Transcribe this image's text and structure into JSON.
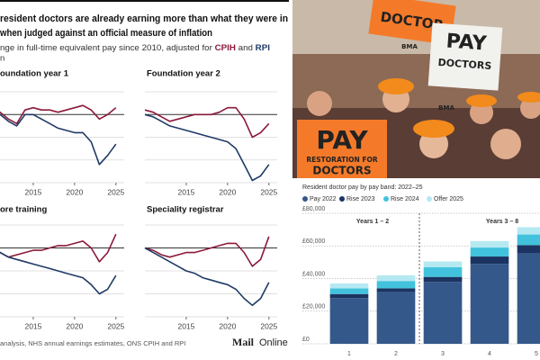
{
  "header": {
    "title": [
      "resident doctors are already earning more than what they were in",
      "when judged against an official measure of inflation"
    ],
    "subtitle": [
      "nge in full-time equivalent pay since 2010, adjusted for ",
      "CPIH",
      " and ",
      "RPI",
      "n"
    ],
    "source": "analysis, NHS annual earnings estimates, ONS CPIH and RPI",
    "logo": [
      "Mail",
      "Online"
    ]
  },
  "photo": {
    "signs": [
      "PAY",
      "RESTORATION FOR",
      "DOCTORS",
      "DOCTOR",
      "PAY",
      "DOCTORS",
      "BMA",
      "BMA"
    ]
  },
  "chart_data": [
    {
      "type": "line",
      "title": "oundation year 1",
      "x": [
        2010,
        2011,
        2012,
        2013,
        2014,
        2015,
        2016,
        2017,
        2018,
        2019,
        2020,
        2021,
        2022,
        2023,
        2024,
        2025
      ],
      "series": [
        {
          "color": "#8b1a3a",
          "values": [
            0,
            1,
            -2,
            -4,
            2,
            3,
            2,
            2,
            1,
            2,
            3,
            4,
            2,
            -2,
            0,
            3
          ]
        },
        {
          "color": "#1f3a66",
          "values": [
            0,
            0,
            -3,
            -5,
            0,
            0,
            -2,
            -4,
            -6,
            -7,
            -8,
            -8,
            -12,
            -22,
            -18,
            -13
          ]
        }
      ],
      "xlim": [
        2010,
        2026
      ],
      "xticks": [
        2015,
        2020,
        2025
      ],
      "ylim": [
        -30,
        10
      ],
      "yticks": [
        -30,
        -20,
        -10,
        0,
        10
      ],
      "grid": true
    },
    {
      "type": "line",
      "title": "Foundation year 2",
      "x": [
        2010,
        2011,
        2012,
        2013,
        2014,
        2015,
        2016,
        2017,
        2018,
        2019,
        2020,
        2021,
        2022,
        2023,
        2024,
        2025
      ],
      "series": [
        {
          "color": "#8b1a3a",
          "values": [
            2,
            1,
            -1,
            -3,
            -2,
            -1,
            0,
            0,
            0,
            1,
            3,
            3,
            -2,
            -10,
            -8,
            -4
          ]
        },
        {
          "color": "#1f3a66",
          "values": [
            0,
            -1,
            -3,
            -5,
            -6,
            -7,
            -8,
            -9,
            -10,
            -11,
            -12,
            -15,
            -22,
            -29,
            -27,
            -22
          ]
        }
      ],
      "xlim": [
        2010,
        2026
      ],
      "xticks": [
        2015,
        2020,
        2025
      ],
      "ylim": [
        -30,
        10
      ],
      "yticks": [
        -30,
        -20,
        -10,
        0,
        10
      ],
      "grid": true
    },
    {
      "type": "line",
      "title": "ore training",
      "x": [
        2010,
        2011,
        2012,
        2013,
        2014,
        2015,
        2016,
        2017,
        2018,
        2019,
        2020,
        2021,
        2022,
        2023,
        2024,
        2025
      ],
      "series": [
        {
          "color": "#8b1a3a",
          "values": [
            0,
            -2,
            -4,
            -3,
            -2,
            -1,
            -1,
            0,
            1,
            1,
            2,
            3,
            0,
            -6,
            -2,
            6
          ]
        },
        {
          "color": "#1f3a66",
          "values": [
            0,
            -2,
            -4,
            -5,
            -6,
            -7,
            -8,
            -9,
            -10,
            -11,
            -12,
            -13,
            -16,
            -20,
            -18,
            -12
          ]
        }
      ],
      "xlim": [
        2010,
        2026
      ],
      "xticks": [
        2015,
        2020,
        2025
      ],
      "ylim": [
        -30,
        10
      ],
      "yticks": [
        -30,
        -20,
        -10,
        0,
        10
      ],
      "grid": true
    },
    {
      "type": "line",
      "title": "Speciality registrar",
      "x": [
        2010,
        2011,
        2012,
        2013,
        2014,
        2015,
        2016,
        2017,
        2018,
        2019,
        2020,
        2021,
        2022,
        2023,
        2024,
        2025
      ],
      "series": [
        {
          "color": "#8b1a3a",
          "values": [
            0,
            -1,
            -3,
            -4,
            -3,
            -2,
            -2,
            -1,
            0,
            1,
            2,
            2,
            -2,
            -8,
            -5,
            5
          ]
        },
        {
          "color": "#1f3a66",
          "values": [
            0,
            -2,
            -4,
            -6,
            -8,
            -10,
            -11,
            -13,
            -14,
            -15,
            -16,
            -18,
            -22,
            -25,
            -22,
            -15
          ]
        }
      ],
      "xlim": [
        2010,
        2026
      ],
      "xticks": [
        2015,
        2020,
        2025
      ],
      "ylim": [
        -30,
        10
      ],
      "yticks": [
        -30,
        -20,
        -10,
        0,
        10
      ],
      "grid": true
    },
    {
      "type": "bar",
      "stacked": true,
      "title": "Resident doctor pay by pay band: 2022–25",
      "categories": [
        "1",
        "2",
        "3",
        "4",
        "5"
      ],
      "series": [
        {
          "name": "Pay 2022",
          "color": "#34588a",
          "values": [
            28000,
            32000,
            38000,
            49000,
            55500
          ]
        },
        {
          "name": "Rise 2023",
          "color": "#1c3461",
          "values": [
            2500,
            2000,
            3000,
            4500,
            5000
          ]
        },
        {
          "name": "Rise 2024",
          "color": "#42c2dc",
          "values": [
            3500,
            4500,
            6000,
            5500,
            6500
          ]
        },
        {
          "name": "Offer 2025",
          "color": "#b5e9f2",
          "values": [
            3000,
            3500,
            3500,
            4000,
            4500
          ]
        }
      ],
      "ylim": [
        0,
        80000
      ],
      "yticks": [
        {
          "value": 0,
          "label": "£0"
        },
        {
          "value": 20000,
          "label": "£20,000"
        },
        {
          "value": 40000,
          "label": "£40,000"
        },
        {
          "value": 60000,
          "label": "£60,000"
        },
        {
          "value": 80000,
          "label": "£80,000"
        }
      ],
      "annotations": [
        "Years 1 – 2",
        "Years 3 – 8"
      ],
      "grid": true,
      "legend": "top"
    }
  ]
}
